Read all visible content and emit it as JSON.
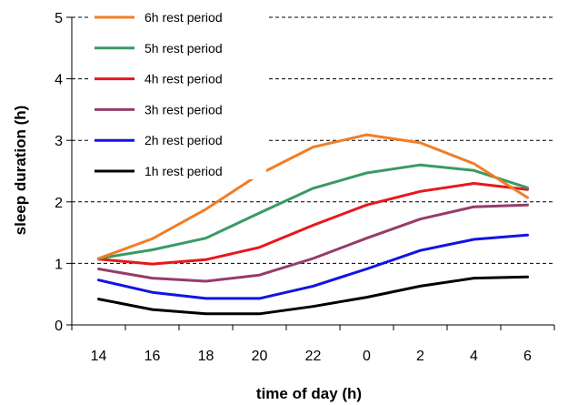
{
  "chart_data": {
    "type": "line",
    "xlabel": "time of day (h)",
    "ylabel": "sleep duration (h)",
    "categories": [
      "14",
      "16",
      "18",
      "20",
      "22",
      "0",
      "2",
      "4",
      "6"
    ],
    "ylim": [
      0,
      5
    ],
    "yticks": [
      0,
      1,
      2,
      3,
      4,
      5
    ],
    "grid": "horizontal dashed",
    "legend_position": "top-left",
    "series": [
      {
        "name": "6h rest period",
        "color": "#F07E26",
        "values": [
          1.08,
          1.4,
          1.88,
          2.45,
          2.89,
          3.09,
          2.96,
          2.62,
          2.07
        ]
      },
      {
        "name": "5h rest period",
        "color": "#3A9A63",
        "values": [
          1.08,
          1.22,
          1.41,
          1.82,
          2.22,
          2.47,
          2.6,
          2.51,
          2.23
        ]
      },
      {
        "name": "4h rest period",
        "color": "#E8171B",
        "values": [
          1.07,
          0.99,
          1.06,
          1.26,
          1.62,
          1.95,
          2.17,
          2.3,
          2.2
        ]
      },
      {
        "name": "3h rest period",
        "color": "#973B6A",
        "values": [
          0.91,
          0.76,
          0.71,
          0.81,
          1.08,
          1.41,
          1.72,
          1.92,
          1.95
        ]
      },
      {
        "name": "2h rest period",
        "color": "#1313E3",
        "values": [
          0.73,
          0.53,
          0.43,
          0.43,
          0.63,
          0.91,
          1.21,
          1.39,
          1.46
        ]
      },
      {
        "name": "1h rest period",
        "color": "#000000",
        "values": [
          0.42,
          0.25,
          0.18,
          0.18,
          0.3,
          0.45,
          0.63,
          0.76,
          0.78
        ]
      }
    ]
  }
}
